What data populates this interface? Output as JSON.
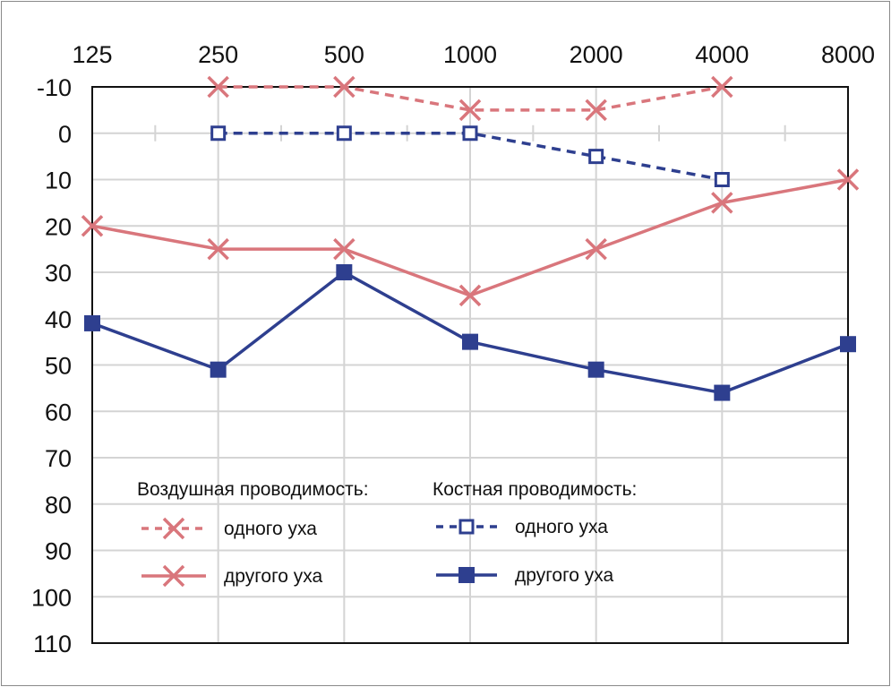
{
  "chart_data": {
    "type": "line",
    "title": "",
    "xlabel": "",
    "ylabel": "",
    "x_scale": "log2",
    "categories": [
      "125",
      "250",
      "500",
      "1000",
      "2000",
      "4000",
      "8000"
    ],
    "y_ticks": [
      "-10",
      "0",
      "10",
      "20",
      "30",
      "40",
      "50",
      "60",
      "70",
      "80",
      "90",
      "100",
      "110"
    ],
    "ylim": [
      -10,
      110
    ],
    "y_inverted": true,
    "grid": true,
    "legend": {
      "placement": "bottom-left",
      "air_title": "Воздушная проводимость:",
      "bone_title": "Костная проводимость:"
    },
    "series": [
      {
        "name": "одного уха",
        "group": "air",
        "style": "dashed",
        "marker": "x",
        "color": "#d9767c",
        "values": [
          null,
          -10,
          -10,
          -5,
          -5,
          -10,
          null
        ]
      },
      {
        "name": "другого уха",
        "group": "air",
        "style": "solid",
        "marker": "x",
        "color": "#d9767c",
        "values": [
          20,
          25,
          25,
          35,
          25,
          15,
          10
        ]
      },
      {
        "name": "одного уха",
        "group": "bone",
        "style": "dashed",
        "marker": "open-square",
        "color": "#2e3f8f",
        "values": [
          null,
          0,
          0,
          0,
          5,
          10,
          null
        ]
      },
      {
        "name": "другого уха",
        "group": "bone",
        "style": "solid",
        "marker": "filled-square",
        "color": "#2e3f8f",
        "values": [
          41,
          51,
          30,
          45,
          51,
          56,
          45.5
        ]
      }
    ]
  }
}
